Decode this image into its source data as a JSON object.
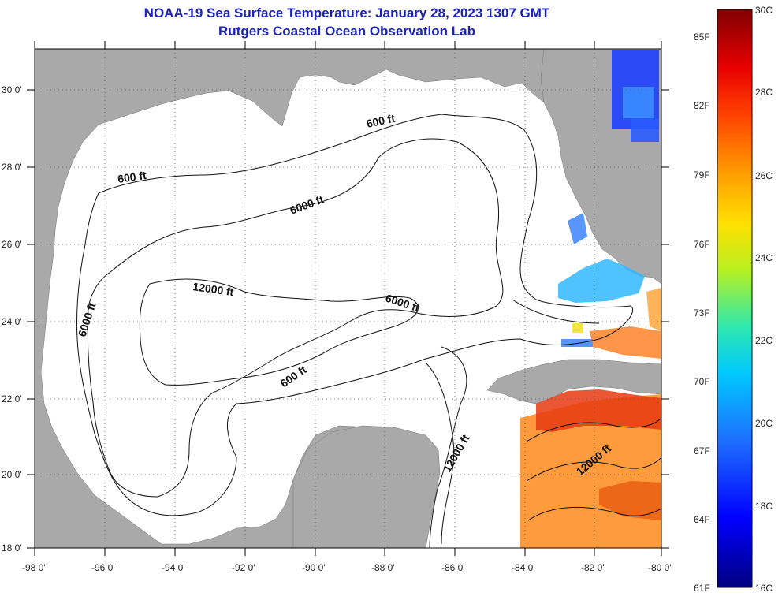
{
  "title": {
    "line1": "NOAA-19 Sea Surface Temperature:  January 28, 2023 1307 GMT",
    "line2": "Rutgers Coastal Ocean Observation Lab"
  },
  "lon_ticks": [
    "-98 0'",
    "-96 0'",
    "-94 0'",
    "-92 0'",
    "-90 0'",
    "-88 0'",
    "-86 0'",
    "-84 0'",
    "-82 0'",
    "-80 0'"
  ],
  "lat_ticks": [
    "30 0'",
    "28 0'",
    "26 0'",
    "24 0'",
    "22 0'",
    "20 0'",
    "18 0'"
  ],
  "contour_labels": {
    "c600_nw": "600 ft",
    "c600_ne": "600 ft",
    "c600_s": "600 ft",
    "c6000_n": "6000 ft",
    "c6000_w": "6000 ft",
    "c6000_e": "6000 ft",
    "c12000_c": "12000 ft",
    "c12000_se": "12000 ft",
    "c12000_ce": "12000 ft"
  },
  "colorbar": {
    "f_labels": [
      "85F",
      "82F",
      "79F",
      "76F",
      "73F",
      "70F",
      "67F",
      "64F",
      "61F"
    ],
    "c_labels": [
      "30C",
      "28C",
      "26C",
      "24C",
      "22C",
      "20C",
      "18C",
      "16C"
    ]
  },
  "colors": {
    "land": "#a9a9a9",
    "ocean": "#ffffff",
    "title": "#1a22b8",
    "grid": "#555555"
  }
}
